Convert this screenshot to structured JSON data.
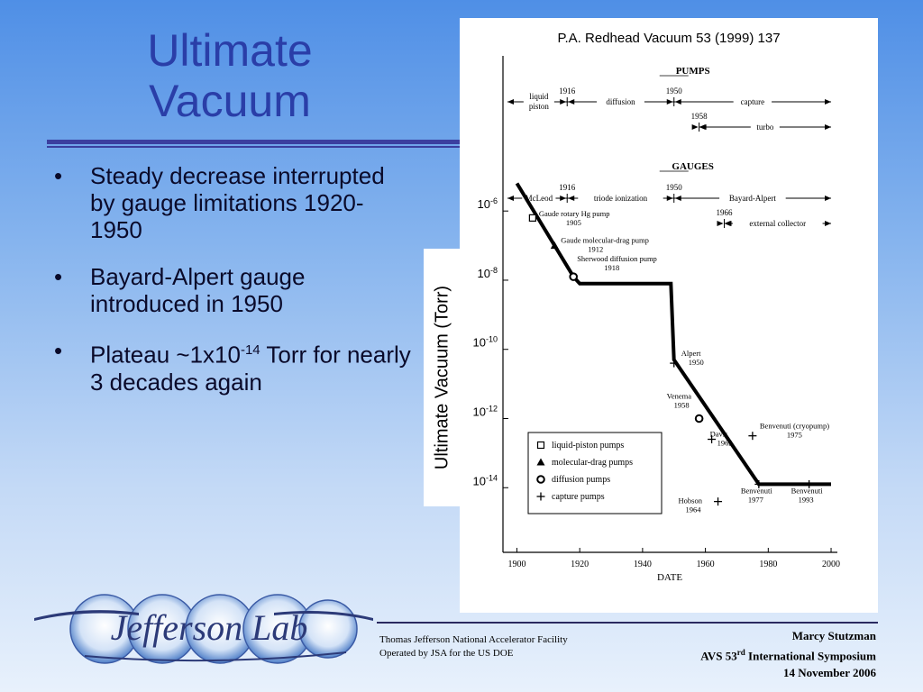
{
  "slide": {
    "title_line1": "Ultimate",
    "title_line2": "Vacuum",
    "bullets": [
      {
        "text": "Steady decrease interrupted by gauge limitations 1920-1950"
      },
      {
        "text": "Bayard-Alpert gauge introduced in 1950"
      },
      {
        "text_pre": "Plateau ~1x10",
        "sup": "-14",
        "text_post": " Torr for nearly 3 decades again"
      }
    ],
    "bullet_glyph": "•",
    "citation": "P.A. Redhead Vacuum 53 (1999) 137",
    "ylabel": "Ultimate Vacuum (Torr)"
  },
  "logo": {
    "text": "Jefferson Lab",
    "color": "#2c3a78"
  },
  "footer": {
    "org_line1": "Thomas Jefferson National Accelerator Facility",
    "org_line2": "Operated by JSA for the US DOE",
    "author": "Marcy Stutzman",
    "event_pre": "AVS 53",
    "event_sup": "rd",
    "event_post": " International Symposium",
    "date": "14 November 2006"
  },
  "chart_data": {
    "type": "line",
    "xlabel": "DATE",
    "x_ticks": [
      1900,
      1920,
      1940,
      1960,
      1980,
      2000
    ],
    "xlim": [
      1897,
      2002
    ],
    "y_log_scale": true,
    "ylim_exponent": [
      -15.4,
      -5.5
    ],
    "y_tick_labels": [
      {
        "base": "10",
        "exp": "-6",
        "value": -6
      },
      {
        "base": "10",
        "exp": "-8",
        "value": -8
      },
      {
        "base": "10",
        "exp": "-10",
        "value": -10
      },
      {
        "base": "10",
        "exp": "-12",
        "value": -12
      },
      {
        "base": "10",
        "exp": "-14",
        "value": -14
      }
    ],
    "series": [
      {
        "points": [
          {
            "x": 1900,
            "y": -5.2
          },
          {
            "x": 1918,
            "y": -7.9
          },
          {
            "x": 1920,
            "y": -8.1
          },
          {
            "x": 1949,
            "y": -8.1
          },
          {
            "x": 1950,
            "y": -10.3
          },
          {
            "x": 1977,
            "y": -13.9
          },
          {
            "x": 1993,
            "y": -13.9
          },
          {
            "x": 2000,
            "y": -13.9
          }
        ]
      }
    ],
    "point_labels": [
      {
        "lines": [
          "Gaude rotary Hg pump",
          "1905"
        ],
        "x": 1905,
        "y": -6.2,
        "marker": "square"
      },
      {
        "lines": [
          "Gaude molecular-drag pump",
          "1912"
        ],
        "x": 1912,
        "y": -7.0,
        "marker": "triangle"
      },
      {
        "lines": [
          "Sherwood diffusion pump",
          "1918"
        ],
        "x": 1918,
        "y": -7.9,
        "marker": "circle"
      },
      {
        "lines": [
          "Alpert",
          "1950"
        ],
        "x": 1950,
        "y": -10.4,
        "marker": "cross"
      },
      {
        "lines": [
          "Venema",
          "1958"
        ],
        "x": 1958,
        "y": -12.0,
        "marker": "circle"
      },
      {
        "lines": [
          "Davis",
          "1962"
        ],
        "x": 1962,
        "y": -12.6,
        "marker": "cross"
      },
      {
        "lines": [
          "Benvenuti (cryopump)",
          "1975"
        ],
        "x": 1975,
        "y": -12.5,
        "marker": "cross"
      },
      {
        "lines": [
          "Benvenuti",
          "1977"
        ],
        "x": 1977,
        "y": -13.9,
        "marker": "cross"
      },
      {
        "lines": [
          "Benvenuti",
          "1993"
        ],
        "x": 1993,
        "y": -13.9,
        "marker": "cross"
      },
      {
        "lines": [
          "Hobson",
          "1964"
        ],
        "x": 1964,
        "y": -14.4,
        "marker": "cross"
      }
    ],
    "legend": {
      "placement": "lower-left",
      "entries": [
        {
          "marker": "square",
          "label": "liquid-piston pumps"
        },
        {
          "marker": "triangle",
          "label": "molecular-drag pumps"
        },
        {
          "marker": "circle",
          "label": "diffusion pumps"
        },
        {
          "marker": "cross",
          "label": "capture pumps"
        }
      ]
    },
    "timelines": [
      {
        "heading": "PUMPS",
        "rows": [
          {
            "tick_years": [
              1916,
              1950
            ],
            "segments": [
              {
                "label": [
                  "liquid",
                  "piston"
                ],
                "start": 1897,
                "end": 1916
              },
              {
                "label": [
                  "diffusion"
                ],
                "start": 1916,
                "end": 1950
              },
              {
                "label": [
                  "capture"
                ],
                "start": 1950,
                "end": 2000
              }
            ]
          },
          {
            "tick_years": [
              1958
            ],
            "segments": [
              {
                "label": [
                  "turbo"
                ],
                "start": 1958,
                "end": 2000
              }
            ]
          }
        ]
      },
      {
        "heading": "GAUGES",
        "rows": [
          {
            "tick_years": [
              1916,
              1950
            ],
            "segments": [
              {
                "label": [
                  "McLeod"
                ],
                "start": 1897,
                "end": 1916
              },
              {
                "label": [
                  "triode ionization"
                ],
                "start": 1916,
                "end": 1950
              },
              {
                "label": [
                  "Bayard-Alpert"
                ],
                "start": 1950,
                "end": 2000
              }
            ]
          },
          {
            "tick_years": [
              1966
            ],
            "segments": [
              {
                "label": [
                  "external collector"
                ],
                "start": 1966,
                "end": 2000
              }
            ]
          }
        ]
      }
    ]
  }
}
